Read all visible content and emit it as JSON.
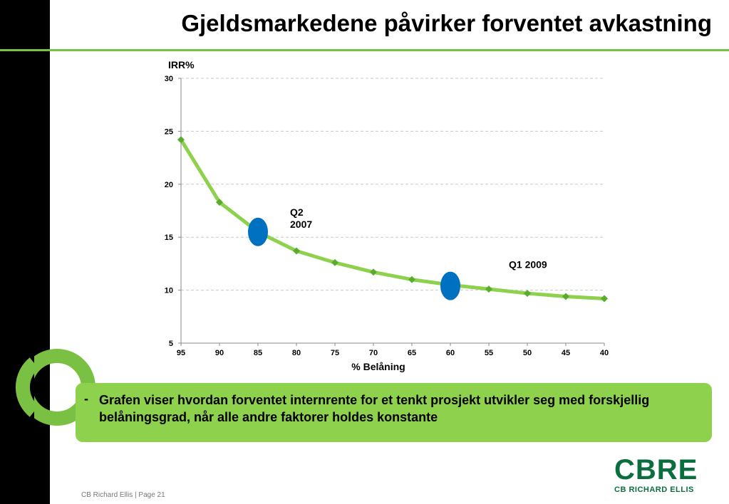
{
  "slide": {
    "title": "Gjeldsmarkedene påvirker forventet avkastning",
    "footer": "CB Richard Ellis | Page 21",
    "logo_main": "CBRE",
    "logo_sub": "CB RICHARD ELLIS",
    "callout_dash": "-",
    "callout_text": "Grafen viser hvordan forventet internrente for et tenkt prosjekt utvikler seg med forskjellig belåningsgrad, når alle andre faktorer holdes konstante"
  },
  "colors": {
    "accent_green": "#7ac143",
    "line_green": "#8dd14d",
    "marker_green": "#5aac2e",
    "highlight_blue": "#0070c0",
    "logo_green": "#0b6e3f"
  },
  "chart_data": {
    "type": "line",
    "xlabel": "% Belåning",
    "ylabel": "IRR%",
    "x": [
      95,
      90,
      85,
      80,
      75,
      70,
      65,
      60,
      55,
      50,
      45,
      40
    ],
    "x_reversed": true,
    "ylim": [
      5,
      30
    ],
    "yticks": [
      5,
      10,
      15,
      20,
      25,
      30
    ],
    "grid": "horizontal dashed",
    "series": [
      {
        "values": [
          24.2,
          18.3,
          15.5,
          13.7,
          12.6,
          11.7,
          11.0,
          10.5,
          10.1,
          9.7,
          9.4,
          9.2
        ]
      }
    ],
    "annotations": [
      {
        "text": "Q2 2007",
        "lines": [
          "Q2",
          "2007"
        ],
        "x": 85,
        "y": 15.5
      },
      {
        "text": "Q1 2009",
        "lines": [
          "Q1 2009"
        ],
        "x": 60,
        "y": 10.4
      }
    ]
  }
}
